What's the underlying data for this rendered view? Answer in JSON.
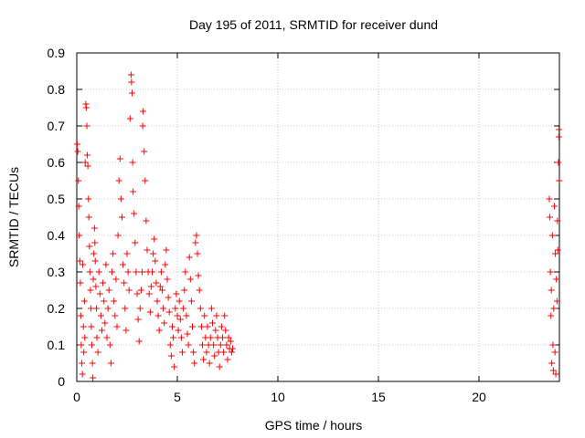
{
  "chart_data": {
    "type": "scatter",
    "title": "Day 195 of 2011, SRMTID for receiver dund",
    "xlabel": "GPS time / hours",
    "ylabel": "SRMTID / TECUs",
    "xlim": [
      0,
      24
    ],
    "ylim": [
      0,
      0.9
    ],
    "x_ticks": [
      0,
      5,
      10,
      15,
      20
    ],
    "x_tick_labels": [
      "0",
      "5",
      "10",
      "15",
      "20"
    ],
    "y_ticks": [
      0,
      0.1,
      0.2,
      0.3,
      0.4,
      0.5,
      0.6,
      0.7,
      0.8,
      0.9
    ],
    "y_tick_labels": [
      "0",
      "0.1",
      "0.2",
      "0.3",
      "0.4",
      "0.5",
      "0.6",
      "0.7",
      "0.8",
      "0.9"
    ],
    "grid": true,
    "marker": "plus",
    "color": "#ff0000",
    "series": [
      {
        "name": "SRMTID",
        "points": [
          [
            0.02,
            0.65
          ],
          [
            0.05,
            0.63
          ],
          [
            0.08,
            0.55
          ],
          [
            0.1,
            0.48
          ],
          [
            0.12,
            0.4
          ],
          [
            0.15,
            0.33
          ],
          [
            0.18,
            0.27
          ],
          [
            0.2,
            0.18
          ],
          [
            0.22,
            0.1
          ],
          [
            0.25,
            0.05
          ],
          [
            0.28,
            0.02
          ],
          [
            0.3,
            0.32
          ],
          [
            0.33,
            0.15
          ],
          [
            0.35,
            0.08
          ],
          [
            0.38,
            0.22
          ],
          [
            0.4,
            0.12
          ],
          [
            0.42,
            0.6
          ],
          [
            0.45,
            0.76
          ],
          [
            0.47,
            0.75
          ],
          [
            0.5,
            0.7
          ],
          [
            0.52,
            0.62
          ],
          [
            0.55,
            0.59
          ],
          [
            0.58,
            0.5
          ],
          [
            0.6,
            0.45
          ],
          [
            0.63,
            0.37
          ],
          [
            0.65,
            0.3
          ],
          [
            0.68,
            0.25
          ],
          [
            0.7,
            0.2
          ],
          [
            0.72,
            0.15
          ],
          [
            0.75,
            0.1
          ],
          [
            0.78,
            0.05
          ],
          [
            0.8,
            0.01
          ],
          [
            0.82,
            0.28
          ],
          [
            0.85,
            0.35
          ],
          [
            0.88,
            0.42
          ],
          [
            0.9,
            0.38
          ],
          [
            0.92,
            0.33
          ],
          [
            0.95,
            0.26
          ],
          [
            0.98,
            0.2
          ],
          [
            1.0,
            0.12
          ],
          [
            1.05,
            0.08
          ],
          [
            1.1,
            0.3
          ],
          [
            1.15,
            0.24
          ],
          [
            1.2,
            0.18
          ],
          [
            1.25,
            0.14
          ],
          [
            1.3,
            0.27
          ],
          [
            1.35,
            0.22
          ],
          [
            1.4,
            0.16
          ],
          [
            1.45,
            0.32
          ],
          [
            1.5,
            0.12
          ],
          [
            1.55,
            0.2
          ],
          [
            1.6,
            0.25
          ],
          [
            1.65,
            0.1
          ],
          [
            1.7,
            0.05
          ],
          [
            1.75,
            0.3
          ],
          [
            1.8,
            0.35
          ],
          [
            1.85,
            0.22
          ],
          [
            1.9,
            0.18
          ],
          [
            1.95,
            0.28
          ],
          [
            2.0,
            0.15
          ],
          [
            2.05,
            0.4
          ],
          [
            2.1,
            0.55
          ],
          [
            2.15,
            0.61
          ],
          [
            2.2,
            0.5
          ],
          [
            2.25,
            0.45
          ],
          [
            2.3,
            0.32
          ],
          [
            2.35,
            0.27
          ],
          [
            2.4,
            0.2
          ],
          [
            2.45,
            0.14
          ],
          [
            2.5,
            0.35
          ],
          [
            2.55,
            0.3
          ],
          [
            2.6,
            0.25
          ],
          [
            2.65,
            0.72
          ],
          [
            2.7,
            0.84
          ],
          [
            2.72,
            0.82
          ],
          [
            2.75,
            0.79
          ],
          [
            2.78,
            0.6
          ],
          [
            2.8,
            0.52
          ],
          [
            2.85,
            0.46
          ],
          [
            2.9,
            0.38
          ],
          [
            2.95,
            0.3
          ],
          [
            3.0,
            0.24
          ],
          [
            3.05,
            0.17
          ],
          [
            3.1,
            0.11
          ],
          [
            3.15,
            0.2
          ],
          [
            3.2,
            0.25
          ],
          [
            3.25,
            0.3
          ],
          [
            3.28,
            0.7
          ],
          [
            3.3,
            0.74
          ],
          [
            3.35,
            0.63
          ],
          [
            3.4,
            0.55
          ],
          [
            3.45,
            0.44
          ],
          [
            3.5,
            0.36
          ],
          [
            3.55,
            0.3
          ],
          [
            3.6,
            0.24
          ],
          [
            3.65,
            0.19
          ],
          [
            3.7,
            0.26
          ],
          [
            3.75,
            0.3
          ],
          [
            3.8,
            0.35
          ],
          [
            3.85,
            0.39
          ],
          [
            3.9,
            0.33
          ],
          [
            3.95,
            0.27
          ],
          [
            4.0,
            0.22
          ],
          [
            4.05,
            0.18
          ],
          [
            4.1,
            0.14
          ],
          [
            4.15,
            0.26
          ],
          [
            4.2,
            0.3
          ],
          [
            4.25,
            0.25
          ],
          [
            4.3,
            0.2
          ],
          [
            4.35,
            0.16
          ],
          [
            4.4,
            0.32
          ],
          [
            4.45,
            0.36
          ],
          [
            4.5,
            0.28
          ],
          [
            4.55,
            0.23
          ],
          [
            4.6,
            0.19
          ],
          [
            4.65,
            0.1
          ],
          [
            4.7,
            0.07
          ],
          [
            4.75,
            0.15
          ],
          [
            4.8,
            0.12
          ],
          [
            4.85,
            0.04
          ],
          [
            4.9,
            0.2
          ],
          [
            4.95,
            0.24
          ],
          [
            5.0,
            0.18
          ],
          [
            5.05,
            0.14
          ],
          [
            5.1,
            0.22
          ],
          [
            5.15,
            0.17
          ],
          [
            5.2,
            0.12
          ],
          [
            5.25,
            0.08
          ],
          [
            5.3,
            0.2
          ],
          [
            5.35,
            0.25
          ],
          [
            5.4,
            0.3
          ],
          [
            5.45,
            0.18
          ],
          [
            5.5,
            0.13
          ],
          [
            5.55,
            0.1
          ],
          [
            5.6,
            0.34
          ],
          [
            5.65,
            0.28
          ],
          [
            5.7,
            0.22
          ],
          [
            5.75,
            0.15
          ],
          [
            5.8,
            0.08
          ],
          [
            5.85,
            0.05
          ],
          [
            5.9,
            0.38
          ],
          [
            5.95,
            0.4
          ],
          [
            6.0,
            0.35
          ],
          [
            6.05,
            0.29
          ],
          [
            6.1,
            0.25
          ],
          [
            6.15,
            0.2
          ],
          [
            6.2,
            0.15
          ],
          [
            6.25,
            0.1
          ],
          [
            6.3,
            0.06
          ],
          [
            6.35,
            0.18
          ],
          [
            6.4,
            0.12
          ],
          [
            6.45,
            0.08
          ],
          [
            6.5,
            0.15
          ],
          [
            6.55,
            0.1
          ],
          [
            6.6,
            0.05
          ],
          [
            6.65,
            0.12
          ],
          [
            6.7,
            0.2
          ],
          [
            6.75,
            0.16
          ],
          [
            6.8,
            0.1
          ],
          [
            6.85,
            0.07
          ],
          [
            6.9,
            0.14
          ],
          [
            6.95,
            0.18
          ],
          [
            7.0,
            0.12
          ],
          [
            7.05,
            0.08
          ],
          [
            7.1,
            0.04
          ],
          [
            7.15,
            0.1
          ],
          [
            7.2,
            0.15
          ],
          [
            7.25,
            0.12
          ],
          [
            7.3,
            0.08
          ],
          [
            7.35,
            0.18
          ],
          [
            7.4,
            0.14
          ],
          [
            7.45,
            0.1
          ],
          [
            7.5,
            0.06
          ],
          [
            7.55,
            0.12
          ],
          [
            7.6,
            0.09
          ],
          [
            7.65,
            0.11
          ],
          [
            7.7,
            0.08
          ],
          [
            7.75,
            0.09
          ],
          [
            23.5,
            0.5
          ],
          [
            23.52,
            0.45
          ],
          [
            23.55,
            0.3
          ],
          [
            23.58,
            0.18
          ],
          [
            23.6,
            0.25
          ],
          [
            23.62,
            0.05
          ],
          [
            23.65,
            0.4
          ],
          [
            23.68,
            0.1
          ],
          [
            23.7,
            0.03
          ],
          [
            23.72,
            0.2
          ],
          [
            23.75,
            0.48
          ],
          [
            23.78,
            0.08
          ],
          [
            23.8,
            0.35
          ],
          [
            23.82,
            0.02
          ],
          [
            23.85,
            0.28
          ],
          [
            23.88,
            0.22
          ],
          [
            23.9,
            0.44
          ],
          [
            23.92,
            0.36
          ],
          [
            23.95,
            0.6
          ],
          [
            23.97,
            0.67
          ],
          [
            23.98,
            0.69
          ],
          [
            23.99,
            0.55
          ]
        ]
      }
    ]
  }
}
